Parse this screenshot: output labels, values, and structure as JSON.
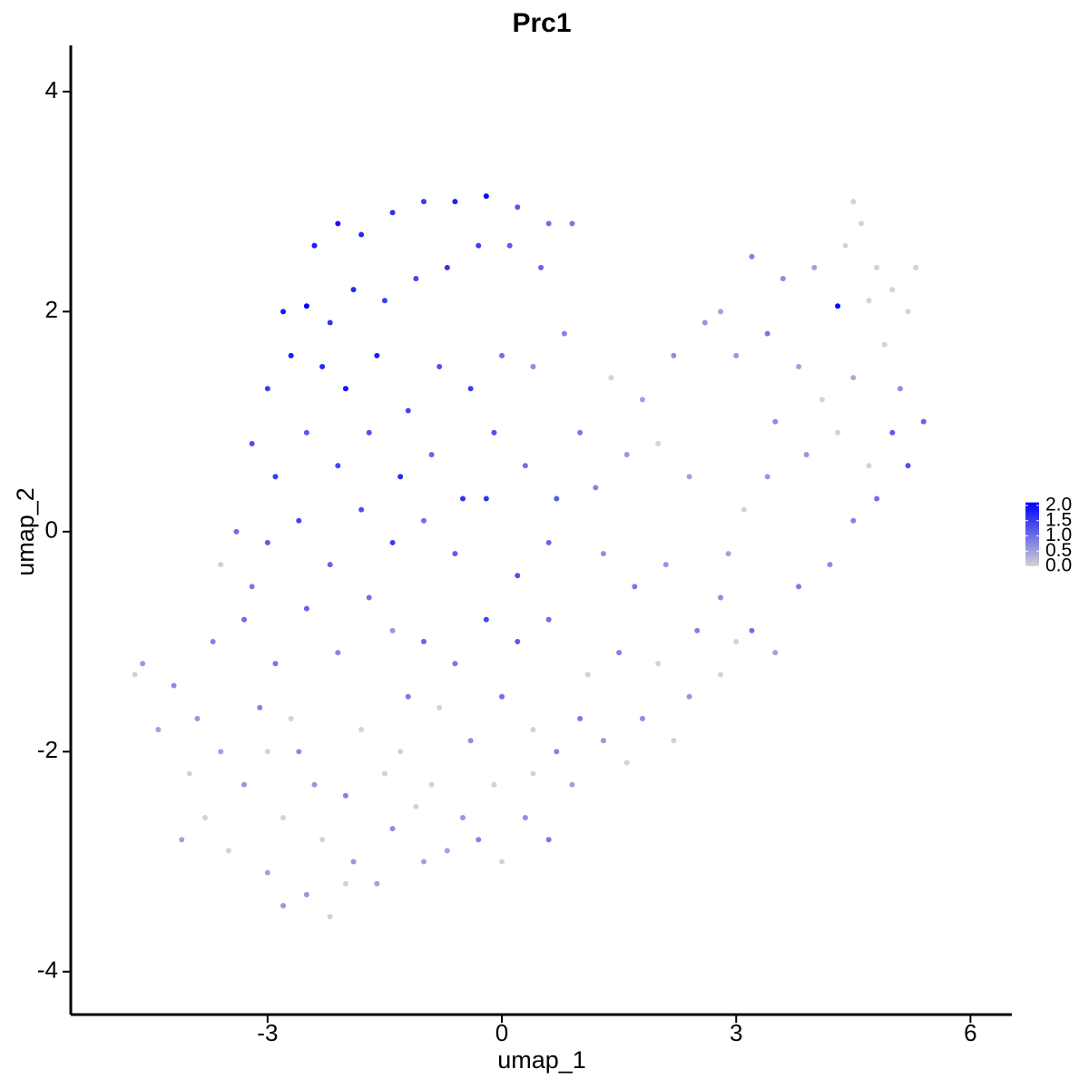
{
  "chart_data": {
    "type": "scatter",
    "title": "Prc1",
    "xlabel": "umap_1",
    "ylabel": "umap_2",
    "x": [
      -2.4,
      -2.1,
      -1.8,
      -1.4,
      -1.0,
      -0.6,
      -0.2,
      0.2,
      0.6,
      0.9,
      -2.8,
      -2.5,
      -2.2,
      -1.9,
      -1.5,
      -1.1,
      -0.7,
      -0.3,
      0.1,
      0.5,
      -3.0,
      -2.7,
      -2.3,
      -2.0,
      -1.6,
      -1.2,
      -0.8,
      -0.4,
      0.0,
      0.4,
      0.8,
      -3.2,
      -2.9,
      -2.5,
      -2.1,
      -1.7,
      -1.3,
      -0.9,
      -0.5,
      -0.1,
      0.3,
      0.7,
      1.0,
      -3.4,
      -3.0,
      -2.6,
      -2.2,
      -1.8,
      -1.4,
      -1.0,
      -0.6,
      -0.2,
      0.2,
      0.6,
      1.2,
      1.6,
      1.8,
      2.2,
      2.6,
      1.4,
      2.0,
      2.4,
      3.2,
      3.6,
      4.0,
      4.3,
      4.4,
      4.6,
      4.8,
      5.0,
      5.2,
      4.5,
      4.7,
      5.3,
      3.0,
      3.4,
      3.8,
      4.1,
      4.5,
      4.9,
      5.1,
      2.8,
      3.5,
      3.9,
      4.3,
      4.7,
      5.0,
      5.2,
      5.4,
      4.8,
      4.5,
      4.2,
      3.8,
      3.4,
      3.1,
      2.9,
      1.3,
      1.7,
      2.1,
      2.5,
      2.8,
      3.2,
      3.5,
      2.0,
      2.4,
      2.8,
      3.0,
      1.5,
      1.1,
      1.8,
      2.2,
      1.3,
      0.9,
      1.0,
      1.6,
      -1.0,
      -0.6,
      -0.2,
      0.2,
      0.6,
      -0.8,
      -0.4,
      0.0,
      0.4,
      0.7,
      -0.9,
      -0.5,
      -0.1,
      0.3,
      0.6,
      -0.7,
      0.0,
      0.4,
      -0.3,
      -4.7,
      -4.6,
      -4.4,
      -4.2,
      -4.0,
      -3.9,
      -3.8,
      -3.6,
      -3.5,
      -3.3,
      -3.1,
      -3.0,
      -2.8,
      -2.6,
      -2.5,
      -2.3,
      -2.2,
      -2.0,
      -1.9,
      -1.8,
      -1.6,
      -1.5,
      -1.4,
      -1.2,
      -1.3,
      -3.7,
      -3.3,
      -2.9,
      -2.5,
      -2.1,
      -1.7,
      -1.4,
      -3.6,
      -3.2,
      -2.7,
      -2.4,
      -3.0,
      -4.1,
      -2.8,
      -2.0,
      -1.1,
      -1.0
    ],
    "y": [
      2.6,
      2.8,
      2.7,
      2.9,
      3.0,
      3.0,
      3.05,
      2.95,
      2.8,
      2.8,
      2.0,
      2.05,
      1.9,
      2.2,
      2.1,
      2.3,
      2.4,
      2.6,
      2.6,
      2.4,
      1.3,
      1.6,
      1.5,
      1.3,
      1.6,
      1.1,
      1.5,
      1.3,
      1.6,
      1.5,
      1.8,
      0.8,
      0.5,
      0.9,
      0.6,
      0.9,
      0.5,
      0.7,
      0.3,
      0.9,
      0.6,
      0.3,
      0.9,
      0.0,
      -0.1,
      0.1,
      -0.3,
      0.2,
      -0.1,
      0.1,
      -0.2,
      0.3,
      -0.4,
      -0.1,
      0.4,
      0.7,
      1.2,
      1.6,
      1.9,
      1.4,
      0.8,
      0.5,
      2.5,
      2.3,
      2.4,
      2.05,
      2.6,
      2.8,
      2.4,
      2.2,
      2.0,
      3.0,
      2.1,
      2.4,
      1.6,
      1.8,
      1.5,
      1.2,
      1.4,
      1.7,
      1.3,
      2.0,
      1.0,
      0.7,
      0.9,
      0.6,
      0.9,
      0.6,
      1.0,
      0.3,
      0.1,
      -0.3,
      -0.5,
      0.5,
      0.2,
      -0.2,
      -0.2,
      -0.5,
      -0.3,
      -0.9,
      -0.6,
      -0.9,
      -1.1,
      -1.2,
      -1.5,
      -1.3,
      -1.0,
      -1.1,
      -1.3,
      -1.7,
      -1.9,
      -1.9,
      -2.3,
      -1.7,
      -2.1,
      -1.0,
      -1.2,
      -0.8,
      -1.0,
      -0.8,
      -1.6,
      -1.9,
      -1.5,
      -1.8,
      -2.0,
      -2.3,
      -2.6,
      -2.3,
      -2.6,
      -2.8,
      -2.9,
      -3.0,
      -2.2,
      -2.8,
      -1.3,
      -1.2,
      -1.8,
      -1.4,
      -2.2,
      -1.7,
      -2.6,
      -2.0,
      -2.9,
      -2.3,
      -1.6,
      -3.1,
      -2.6,
      -2.0,
      -3.3,
      -2.8,
      -3.5,
      -2.4,
      -3.0,
      -1.8,
      -3.2,
      -2.2,
      -2.7,
      -1.5,
      -2.0,
      -1.0,
      -0.8,
      -1.2,
      -0.7,
      -1.1,
      -0.6,
      -0.9,
      -0.3,
      -0.5,
      -1.7,
      -2.3,
      -2.0,
      -2.8,
      -3.4,
      -3.2,
      -2.5,
      -3.0
    ],
    "values": [
      1.8,
      1.9,
      1.7,
      1.6,
      1.5,
      1.8,
      2.0,
      1.2,
      1.0,
      0.9,
      1.9,
      2.1,
      1.6,
      1.7,
      1.5,
      1.4,
      1.6,
      1.5,
      1.2,
      1.1,
      1.5,
      1.8,
      1.7,
      1.9,
      1.8,
      1.4,
      1.3,
      1.5,
      1.0,
      0.7,
      0.8,
      1.3,
      1.5,
      1.2,
      1.4,
      1.3,
      1.7,
      1.1,
      1.6,
      1.3,
      1.0,
      1.2,
      0.9,
      1.0,
      1.2,
      1.4,
      1.1,
      1.3,
      1.5,
      1.0,
      1.2,
      1.6,
      1.3,
      1.1,
      0.8,
      0.6,
      0.5,
      0.7,
      0.6,
      0.0,
      0.0,
      0.5,
      0.8,
      0.7,
      0.5,
      2.0,
      0.0,
      0.0,
      0.0,
      0.0,
      0.0,
      0.0,
      0.0,
      0.0,
      0.6,
      0.9,
      0.5,
      0.0,
      0.4,
      0.0,
      0.7,
      0.5,
      0.7,
      0.6,
      0.0,
      0.0,
      1.2,
      1.3,
      1.1,
      1.0,
      0.8,
      0.7,
      0.9,
      0.6,
      0.0,
      0.5,
      0.7,
      0.9,
      0.6,
      0.8,
      0.7,
      1.0,
      0.5,
      0.0,
      0.6,
      0.0,
      0.0,
      0.8,
      0.0,
      0.7,
      0.0,
      0.6,
      0.5,
      0.9,
      0.0,
      1.1,
      0.9,
      1.4,
      1.2,
      1.0,
      0.0,
      0.7,
      1.0,
      0.0,
      0.8,
      0.0,
      0.6,
      0.0,
      0.7,
      0.9,
      0.5,
      0.0,
      0.0,
      0.8,
      0.0,
      0.6,
      0.5,
      0.7,
      0.0,
      0.6,
      0.0,
      0.5,
      0.0,
      0.6,
      0.8,
      0.5,
      0.0,
      0.7,
      0.6,
      0.0,
      0.0,
      0.8,
      0.6,
      0.0,
      0.5,
      0.0,
      0.7,
      0.9,
      0.0,
      0.8,
      1.0,
      0.9,
      1.1,
      0.8,
      1.0,
      0.6,
      0.0,
      0.9,
      0.0,
      0.6,
      0.0,
      0.5,
      0.6,
      0.0,
      0.0,
      0.5
    ],
    "xlim": [
      -5.52,
      6.53
    ],
    "ylim": [
      -4.39,
      4.42
    ],
    "xticks": [
      -3,
      0,
      3,
      6
    ],
    "yticks": [
      -4,
      -2,
      0,
      2,
      4
    ],
    "colorscale": {
      "low": "#d3d3d3",
      "high": "#0000ff"
    },
    "clim": [
      0,
      2.1
    ],
    "cticks": [
      {
        "value": 0,
        "label": "0.0"
      },
      {
        "value": 0.5,
        "label": "0.5"
      },
      {
        "value": 1,
        "label": "1.0"
      },
      {
        "value": 1.5,
        "label": "1.5"
      },
      {
        "value": 2,
        "label": "2.0"
      }
    ]
  }
}
